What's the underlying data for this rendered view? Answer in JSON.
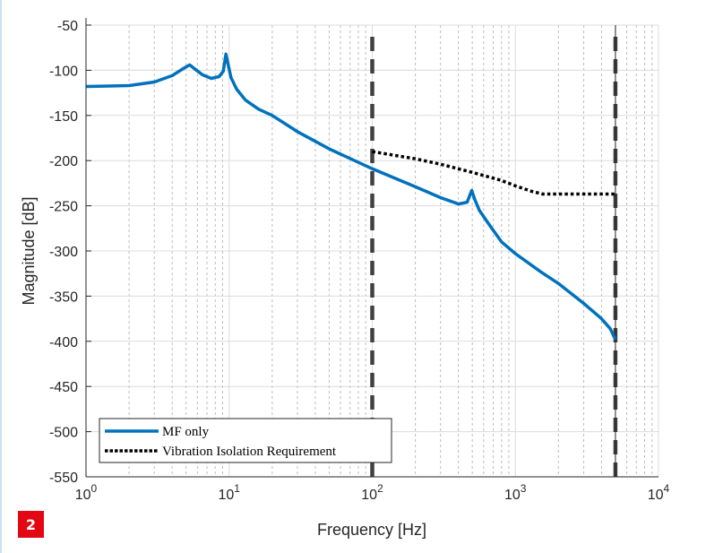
{
  "badge": "2",
  "chart_data": {
    "type": "line",
    "xlabel": "Frequency [Hz]",
    "ylabel": "Magnitude [dB]",
    "xscale": "log",
    "xlim": [
      1,
      10000
    ],
    "ylim": [
      -550,
      -50
    ],
    "xticks": [
      1,
      10,
      100,
      1000,
      10000
    ],
    "xtick_labels": [
      {
        "base": "10",
        "exp": "0"
      },
      {
        "base": "10",
        "exp": "1"
      },
      {
        "base": "10",
        "exp": "2"
      },
      {
        "base": "10",
        "exp": "3"
      },
      {
        "base": "10",
        "exp": "4"
      }
    ],
    "yticks": [
      -50,
      -100,
      -150,
      -200,
      -250,
      -300,
      -350,
      -400,
      -450,
      -500,
      -550
    ],
    "grid": true,
    "legend_position": "bottom-left",
    "series": [
      {
        "name": "MF only",
        "color": "#0072bd",
        "style": "solid",
        "x": [
          1,
          2,
          3,
          4,
          4.8,
          5.3,
          5.8,
          6.5,
          7.5,
          8.5,
          9.1,
          9.5,
          9.8,
          10.3,
          11.3,
          13,
          16,
          20,
          30,
          50,
          100,
          200,
          300,
          400,
          460,
          495,
          520,
          560,
          650,
          800,
          1000,
          1500,
          2000,
          3000,
          4000,
          4600,
          5000
        ],
        "y": [
          -118,
          -117,
          -113,
          -106,
          -98,
          -94,
          -99,
          -105,
          -109,
          -107,
          -101,
          -82,
          -92,
          -108,
          -121,
          -133,
          -143,
          -150,
          -168,
          -187,
          -209,
          -229,
          -241,
          -248,
          -246,
          -233,
          -243,
          -255,
          -270,
          -290,
          -303,
          -323,
          -336,
          -358,
          -375,
          -386,
          -398
        ]
      },
      {
        "name": "Vibration Isolation Requirement",
        "color": "#000000",
        "style": "dotted",
        "x": [
          100,
          200,
          300,
          500,
          800,
          1000,
          1300,
          1550,
          2000,
          3000,
          5000
        ],
        "y": [
          -190,
          -198,
          -204,
          -213,
          -222,
          -228,
          -234,
          -237,
          -237,
          -237,
          -237
        ]
      }
    ],
    "vertical_lines": [
      {
        "x": 100,
        "style": "dashed",
        "color": "#404040"
      },
      {
        "x": 5000,
        "style": "dashed",
        "color": "#404040"
      }
    ]
  }
}
